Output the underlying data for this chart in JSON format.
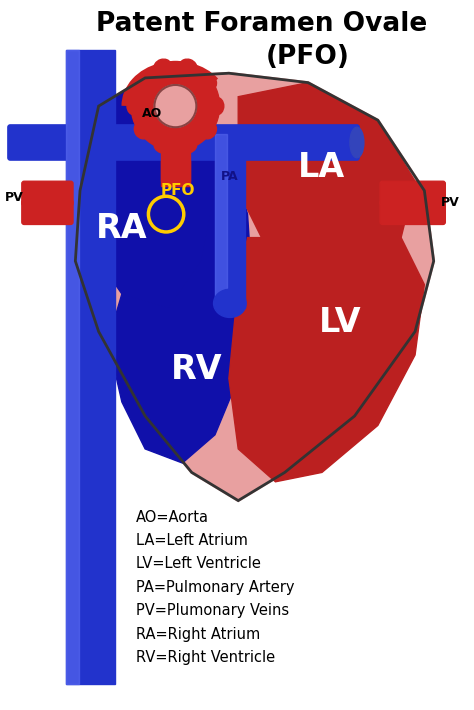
{
  "title_line1": "Patent Foramen Ovale",
  "title_line2": "(PFO)",
  "title_fontsize": 19,
  "bg_color": "#ffffff",
  "heart_outer_color": "#e8a0a0",
  "heart_inner_blue_color": "#1010aa",
  "heart_red_color": "#bb2020",
  "vessel_blue_color": "#2233cc",
  "vessel_red_color": "#cc2222",
  "pfo_circle_color": "#ffcc00",
  "pfo_text_color": "#ffcc00",
  "label_color": "#000000",
  "white_label_color": "#ffffff",
  "legend_lines": [
    "AO=Aorta",
    "LA=Left Atrium",
    "LV=Left Ventricle",
    "PA=Pulmonary Artery",
    "PV=Plumonary Veins",
    "RA=Right Atrium",
    "RV=Right Ventricle"
  ],
  "legend_fontsize": 10.5
}
